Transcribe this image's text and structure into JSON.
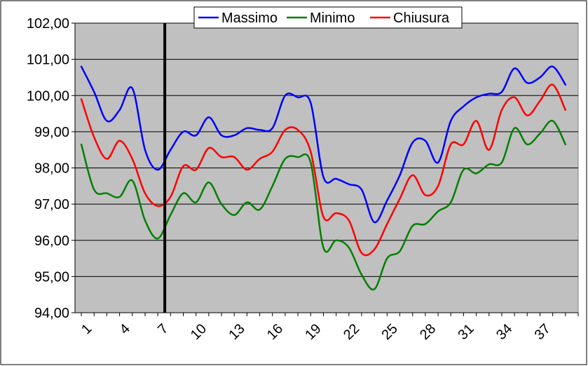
{
  "chart_data": {
    "type": "line",
    "title": "",
    "xlabel": "",
    "ylabel": "",
    "x": [
      1,
      2,
      3,
      4,
      5,
      6,
      7,
      8,
      9,
      10,
      11,
      12,
      13,
      14,
      15,
      16,
      17,
      18,
      19,
      20,
      21,
      22,
      23,
      24,
      25,
      26,
      27,
      28,
      29,
      30,
      31,
      32,
      33,
      34,
      35,
      36,
      37,
      38,
      39,
      40
    ],
    "x_tick_labels": [
      "1",
      "4",
      "7",
      "10",
      "13",
      "16",
      "19",
      "22",
      "25",
      "28",
      "31",
      "34",
      "37"
    ],
    "x_tick_values": [
      1,
      4,
      7,
      10,
      13,
      16,
      19,
      22,
      25,
      28,
      31,
      34,
      37
    ],
    "ylim": [
      94,
      102
    ],
    "y_tick_values": [
      94,
      95,
      96,
      97,
      98,
      99,
      100,
      101,
      102
    ],
    "y_tick_labels": [
      "94,00",
      "95,00",
      "96,00",
      "97,00",
      "98,00",
      "99,00",
      "100,00",
      "101,00",
      "102,00"
    ],
    "grid": "horizontal",
    "background_color": "#c0c0c0",
    "vertical_marker_x": 7.55,
    "legend_position": "top",
    "series": [
      {
        "name": "Massimo",
        "color": "#0000ff",
        "values": [
          100.8,
          100.1,
          99.3,
          99.6,
          100.2,
          98.5,
          97.95,
          98.5,
          99.0,
          98.9,
          99.4,
          98.9,
          98.9,
          99.1,
          99.05,
          99.1,
          100.0,
          99.95,
          99.8,
          97.75,
          97.7,
          97.55,
          97.4,
          96.5,
          97.1,
          97.8,
          98.7,
          98.75,
          98.15,
          99.3,
          99.7,
          99.95,
          100.05,
          100.1,
          100.75,
          100.35,
          100.5,
          100.8,
          100.3,
          null
        ]
      },
      {
        "name": "Minimo",
        "color": "#008000",
        "values": [
          98.65,
          97.4,
          97.3,
          97.2,
          97.65,
          96.55,
          96.05,
          96.7,
          97.3,
          97.05,
          97.6,
          97.0,
          96.7,
          97.05,
          96.85,
          97.5,
          98.25,
          98.3,
          98.15,
          95.8,
          96.0,
          95.8,
          95.05,
          94.65,
          95.5,
          95.7,
          96.4,
          96.45,
          96.8,
          97.05,
          97.95,
          97.85,
          98.1,
          98.15,
          99.1,
          98.65,
          98.95,
          99.3,
          98.65,
          null
        ]
      },
      {
        "name": "Chiusura",
        "color": "#ff0000",
        "values": [
          99.9,
          98.85,
          98.25,
          98.75,
          98.25,
          97.3,
          96.95,
          97.2,
          98.05,
          97.95,
          98.55,
          98.3,
          98.3,
          97.95,
          98.25,
          98.45,
          99.05,
          99.05,
          98.45,
          96.65,
          96.75,
          96.55,
          95.65,
          95.75,
          96.45,
          97.15,
          97.8,
          97.25,
          97.5,
          98.65,
          98.65,
          99.3,
          98.5,
          99.6,
          99.95,
          99.45,
          99.85,
          100.3,
          99.6,
          null
        ]
      }
    ]
  }
}
